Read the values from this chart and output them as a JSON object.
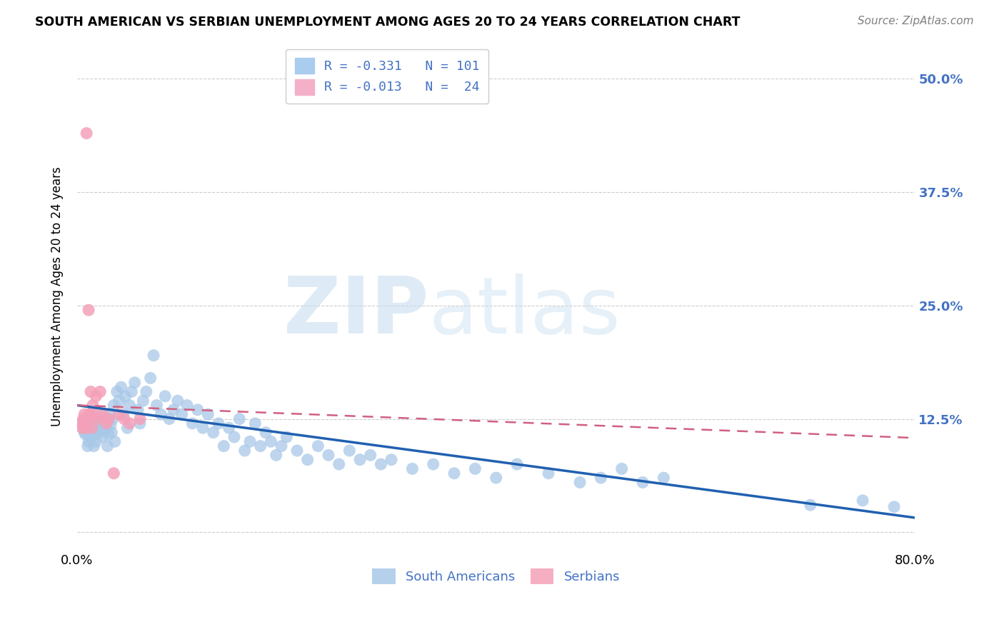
{
  "title": "SOUTH AMERICAN VS SERBIAN UNEMPLOYMENT AMONG AGES 20 TO 24 YEARS CORRELATION CHART",
  "source": "Source: ZipAtlas.com",
  "ylabel": "Unemployment Among Ages 20 to 24 years",
  "xlim": [
    0.0,
    0.8
  ],
  "ylim": [
    -0.02,
    0.54
  ],
  "yticks": [
    0.0,
    0.125,
    0.25,
    0.375,
    0.5
  ],
  "ytick_labels": [
    "",
    "12.5%",
    "25.0%",
    "37.5%",
    "50.0%"
  ],
  "xticks": [
    0.0,
    0.1,
    0.2,
    0.3,
    0.4,
    0.5,
    0.6,
    0.7,
    0.8
  ],
  "xtick_labels": [
    "0.0%",
    "",
    "",
    "",
    "",
    "",
    "",
    "",
    "80.0%"
  ],
  "blue_color": "#a8c8e8",
  "pink_color": "#f4a0b8",
  "blue_line_color": "#2060b0",
  "pink_line_color": "#d06080",
  "blue_slope": -0.155,
  "blue_intercept": 0.14,
  "pink_slope": -0.045,
  "pink_intercept": 0.14,
  "watermark_zip": "ZIP",
  "watermark_atlas": "atlas",
  "south_american_x": [
    0.003,
    0.005,
    0.006,
    0.007,
    0.008,
    0.009,
    0.01,
    0.01,
    0.011,
    0.012,
    0.013,
    0.014,
    0.015,
    0.016,
    0.017,
    0.018,
    0.019,
    0.02,
    0.021,
    0.022,
    0.023,
    0.024,
    0.025,
    0.026,
    0.027,
    0.028,
    0.029,
    0.03,
    0.031,
    0.032,
    0.033,
    0.034,
    0.035,
    0.036,
    0.038,
    0.04,
    0.042,
    0.044,
    0.046,
    0.048,
    0.05,
    0.052,
    0.055,
    0.058,
    0.06,
    0.063,
    0.066,
    0.07,
    0.073,
    0.076,
    0.08,
    0.084,
    0.088,
    0.092,
    0.096,
    0.1,
    0.105,
    0.11,
    0.115,
    0.12,
    0.125,
    0.13,
    0.135,
    0.14,
    0.145,
    0.15,
    0.155,
    0.16,
    0.165,
    0.17,
    0.175,
    0.18,
    0.185,
    0.19,
    0.195,
    0.2,
    0.21,
    0.22,
    0.23,
    0.24,
    0.25,
    0.26,
    0.27,
    0.28,
    0.29,
    0.3,
    0.32,
    0.34,
    0.36,
    0.38,
    0.4,
    0.42,
    0.45,
    0.48,
    0.5,
    0.52,
    0.54,
    0.56,
    0.7,
    0.75,
    0.78
  ],
  "south_american_y": [
    0.12,
    0.115,
    0.118,
    0.11,
    0.108,
    0.112,
    0.125,
    0.095,
    0.1,
    0.13,
    0.105,
    0.115,
    0.12,
    0.095,
    0.108,
    0.1,
    0.118,
    0.11,
    0.115,
    0.125,
    0.13,
    0.105,
    0.112,
    0.118,
    0.12,
    0.115,
    0.095,
    0.108,
    0.13,
    0.118,
    0.11,
    0.125,
    0.14,
    0.1,
    0.155,
    0.145,
    0.16,
    0.13,
    0.15,
    0.115,
    0.14,
    0.155,
    0.165,
    0.135,
    0.12,
    0.145,
    0.155,
    0.17,
    0.195,
    0.14,
    0.13,
    0.15,
    0.125,
    0.135,
    0.145,
    0.13,
    0.14,
    0.12,
    0.135,
    0.115,
    0.13,
    0.11,
    0.12,
    0.095,
    0.115,
    0.105,
    0.125,
    0.09,
    0.1,
    0.12,
    0.095,
    0.11,
    0.1,
    0.085,
    0.095,
    0.105,
    0.09,
    0.08,
    0.095,
    0.085,
    0.075,
    0.09,
    0.08,
    0.085,
    0.075,
    0.08,
    0.07,
    0.075,
    0.065,
    0.07,
    0.06,
    0.075,
    0.065,
    0.055,
    0.06,
    0.07,
    0.055,
    0.06,
    0.03,
    0.035,
    0.028
  ],
  "serbian_x": [
    0.003,
    0.005,
    0.006,
    0.007,
    0.008,
    0.009,
    0.01,
    0.011,
    0.012,
    0.013,
    0.014,
    0.015,
    0.016,
    0.018,
    0.02,
    0.022,
    0.025,
    0.028,
    0.03,
    0.035,
    0.04,
    0.045,
    0.05,
    0.06
  ],
  "serbian_y": [
    0.12,
    0.115,
    0.125,
    0.13,
    0.115,
    0.44,
    0.12,
    0.245,
    0.13,
    0.155,
    0.115,
    0.14,
    0.13,
    0.15,
    0.125,
    0.155,
    0.13,
    0.12,
    0.125,
    0.065,
    0.13,
    0.125,
    0.12,
    0.125
  ]
}
